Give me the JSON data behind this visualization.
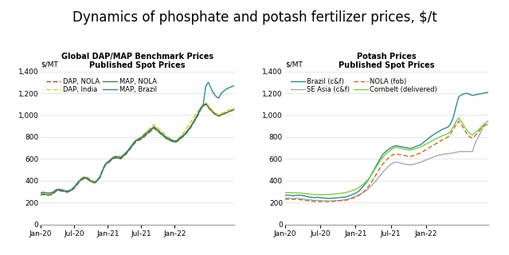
{
  "title": "Dynamics of phosphate and potash fertilizer prices, $/t",
  "title_fontsize": 12,
  "left_chart": {
    "title": "Global DAP/MAP Benchmark Prices",
    "subtitle": "Published Spot Prices",
    "ylabel": "$/MT",
    "ylim": [
      0,
      1400
    ],
    "yticks": [
      0,
      200,
      400,
      600,
      800,
      1000,
      1200,
      1400
    ],
    "series": {
      "DAP, NOLA": {
        "color": "#cc3333",
        "style": "dashed",
        "values": [
          270,
          275,
          270,
          268,
          270,
          285,
          305,
          310,
          305,
          300,
          295,
          300,
          310,
          330,
          360,
          390,
          410,
          420,
          415,
          400,
          385,
          380,
          400,
          430,
          490,
          540,
          560,
          580,
          600,
          610,
          605,
          600,
          620,
          640,
          670,
          700,
          730,
          760,
          770,
          780,
          800,
          820,
          840,
          860,
          880,
          860,
          840,
          820,
          800,
          780,
          770,
          760,
          750,
          760,
          780,
          800,
          820,
          850,
          880,
          920,
          960,
          1000,
          1050,
          1080,
          1100,
          1070,
          1040,
          1020,
          1000,
          990,
          1000,
          1010,
          1020,
          1030,
          1040,
          1050
        ]
      },
      "DAP, India": {
        "color": "#ddcc00",
        "style": "dashed",
        "values": [
          280,
          285,
          282,
          280,
          282,
          295,
          315,
          320,
          316,
          311,
          306,
          306,
          316,
          345,
          375,
          405,
          428,
          438,
          432,
          418,
          402,
          392,
          408,
          440,
          500,
          545,
          568,
          590,
          612,
          625,
          628,
          622,
          638,
          658,
          688,
          718,
          750,
          772,
          788,
          802,
          825,
          848,
          870,
          895,
          915,
          892,
          870,
          848,
          828,
          808,
          790,
          772,
          760,
          778,
          800,
          828,
          858,
          895,
          928,
          968,
          1005,
          1038,
          1060,
          1090,
          1115,
          1088,
          1060,
          1035,
          1015,
          1005,
          1015,
          1025,
          1038,
          1048,
          1058,
          1065
        ]
      },
      "MAP, NOLA": {
        "color": "#4a7c3f",
        "style": "solid",
        "values": [
          270,
          278,
          273,
          270,
          273,
          290,
          310,
          315,
          310,
          305,
          298,
          302,
          315,
          340,
          365,
          395,
          415,
          425,
          418,
          403,
          388,
          382,
          402,
          432,
          495,
          545,
          565,
          585,
          605,
          615,
          608,
          603,
          625,
          645,
          675,
          705,
          735,
          765,
          775,
          785,
          808,
          828,
          848,
          868,
          888,
          865,
          843,
          823,
          803,
          783,
          773,
          763,
          753,
          763,
          783,
          803,
          823,
          853,
          883,
          923,
          963,
          1005,
          1055,
          1085,
          1105,
          1075,
          1045,
          1023,
          1003,
          993,
          1003,
          1013,
          1023,
          1033,
          1043,
          1053
        ]
      },
      "MAP, Brazil": {
        "color": "#2e8b8b",
        "style": "solid",
        "values": [
          290,
          295,
          290,
          288,
          290,
          300,
          318,
          322,
          318,
          312,
          305,
          310,
          322,
          345,
          372,
          400,
          420,
          432,
          425,
          408,
          392,
          386,
          408,
          438,
          500,
          550,
          572,
          592,
          612,
          622,
          618,
          612,
          635,
          655,
          682,
          712,
          745,
          772,
          782,
          795,
          818,
          838,
          858,
          878,
          895,
          872,
          852,
          832,
          812,
          792,
          782,
          772,
          762,
          772,
          792,
          812,
          832,
          862,
          892,
          932,
          972,
          1015,
          1065,
          1095,
          1265,
          1300,
          1250,
          1200,
          1170,
          1155,
          1200,
          1220,
          1240,
          1250,
          1260,
          1270
        ]
      }
    }
  },
  "right_chart": {
    "title": "Potash Prices",
    "subtitle": "Published Spot Prices",
    "ylabel": "$/MT",
    "ylim": [
      0,
      1400
    ],
    "yticks": [
      0,
      200,
      400,
      600,
      800,
      1000,
      1200,
      1400
    ],
    "series": {
      "Brazil (c&f)": {
        "color": "#2e8b8b",
        "style": "solid",
        "values": [
          265,
          268,
          265,
          262,
          265,
          268,
          265,
          262,
          255,
          250,
          248,
          245,
          248,
          245,
          242,
          240,
          238,
          238,
          240,
          242,
          245,
          248,
          250,
          255,
          265,
          275,
          285,
          300,
          325,
          355,
          385,
          420,
          465,
          510,
          555,
          600,
          640,
          665,
          685,
          700,
          715,
          720,
          715,
          710,
          705,
          700,
          695,
          700,
          710,
          720,
          730,
          750,
          770,
          790,
          810,
          825,
          840,
          855,
          870,
          880,
          890,
          920,
          980,
          1080,
          1170,
          1185,
          1195,
          1200,
          1190,
          1180,
          1185,
          1190,
          1195,
          1200,
          1205,
          1210
        ]
      },
      "SE Asia (c&f)": {
        "color": "#aaaaaa",
        "style": "solid",
        "values": [
          240,
          242,
          240,
          238,
          240,
          238,
          235,
          232,
          228,
          225,
          223,
          220,
          220,
          218,
          216,
          215,
          214,
          214,
          216,
          218,
          220,
          222,
          225,
          230,
          238,
          248,
          258,
          268,
          280,
          295,
          310,
          335,
          360,
          385,
          415,
          445,
          475,
          505,
          530,
          550,
          565,
          570,
          565,
          558,
          552,
          548,
          545,
          548,
          555,
          562,
          570,
          580,
          590,
          600,
          610,
          620,
          628,
          635,
          640,
          645,
          648,
          650,
          655,
          660,
          665,
          666,
          666,
          666,
          666,
          666,
          740,
          790,
          840,
          895,
          910,
          920
        ]
      },
      "NOLA (fob)": {
        "color": "#cc6633",
        "style": "dashed",
        "values": [
          230,
          232,
          230,
          228,
          230,
          228,
          225,
          222,
          218,
          215,
          213,
          210,
          210,
          210,
          210,
          210,
          210,
          210,
          212,
          214,
          216,
          218,
          220,
          225,
          232,
          240,
          250,
          262,
          278,
          300,
          325,
          355,
          395,
          435,
          475,
          515,
          552,
          580,
          605,
          625,
          640,
          645,
          640,
          635,
          630,
          625,
          622,
          626,
          635,
          645,
          655,
          670,
          685,
          700,
          715,
          730,
          745,
          760,
          775,
          785,
          800,
          830,
          870,
          910,
          945,
          910,
          870,
          830,
          800,
          790,
          810,
          840,
          870,
          895,
          915,
          930
        ]
      },
      "Cornbelt (delivered)": {
        "color": "#80cc40",
        "style": "solid",
        "values": [
          290,
          292,
          290,
          288,
          290,
          288,
          286,
          284,
          280,
          278,
          275,
          272,
          272,
          272,
          272,
          272,
          272,
          275,
          278,
          280,
          283,
          286,
          290,
          295,
          302,
          312,
          322,
          335,
          352,
          372,
          395,
          425,
          460,
          500,
          540,
          578,
          614,
          642,
          665,
          682,
          698,
          706,
          700,
          695,
          688,
          684,
          680,
          684,
          692,
          700,
          710,
          722,
          735,
          748,
          762,
          775,
          788,
          800,
          812,
          820,
          830,
          855,
          895,
          940,
          975,
          940,
          900,
          862,
          832,
          820,
          838,
          860,
          885,
          910,
          932,
          950
        ]
      }
    }
  },
  "x_labels": [
    "Jan-20",
    "Jul-20",
    "Jan-21",
    "Jul-21",
    "Jan-22"
  ],
  "background_color": "#ffffff",
  "grid_color": "#e0e0e0",
  "n_points": 76,
  "xtick_positions": [
    0,
    13,
    26,
    39,
    52
  ]
}
